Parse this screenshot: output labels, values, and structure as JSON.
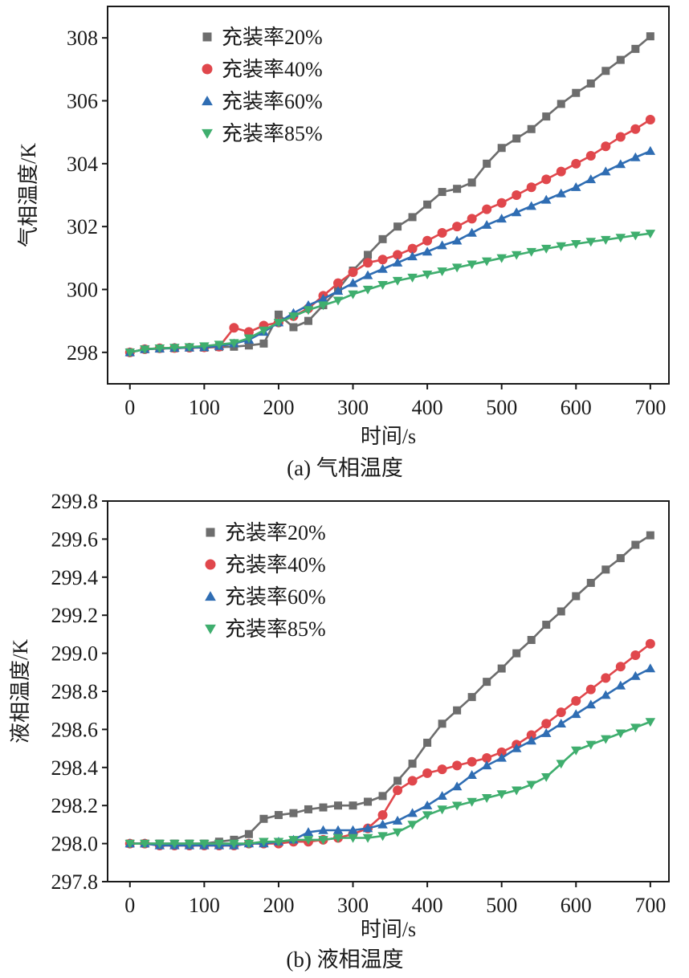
{
  "chart_data": [
    {
      "type": "line",
      "title": "",
      "caption": "(a) 气相温度",
      "xlabel": "时间/s",
      "ylabel": "气相温度/K",
      "xlim": [
        -30,
        725
      ],
      "ylim": [
        297,
        309
      ],
      "xticks": [
        0,
        100,
        200,
        300,
        400,
        500,
        600,
        700
      ],
      "yticks": [
        298,
        300,
        302,
        304,
        306,
        308
      ],
      "ytick_decimals": 0,
      "legend_position": "top-left",
      "series": [
        {
          "name": "充装率20%",
          "marker": "square",
          "color": "#6d6d6d",
          "x": [
            0,
            20,
            40,
            60,
            80,
            100,
            120,
            140,
            160,
            180,
            200,
            220,
            240,
            260,
            280,
            300,
            320,
            340,
            360,
            380,
            400,
            420,
            440,
            460,
            480,
            500,
            520,
            540,
            560,
            580,
            600,
            620,
            640,
            660,
            680,
            700
          ],
          "y": [
            298.0,
            298.1,
            298.12,
            298.13,
            298.15,
            298.15,
            298.17,
            298.18,
            298.22,
            298.28,
            299.2,
            298.8,
            299.0,
            299.5,
            300.0,
            300.6,
            301.1,
            301.6,
            302.0,
            302.3,
            302.7,
            303.1,
            303.2,
            303.4,
            304.0,
            304.5,
            304.8,
            305.1,
            305.5,
            305.9,
            306.25,
            306.55,
            306.95,
            307.3,
            307.65,
            308.05
          ]
        },
        {
          "name": "充装率40%",
          "marker": "circle",
          "color": "#e0474c",
          "x": [
            0,
            20,
            40,
            60,
            80,
            100,
            120,
            140,
            160,
            180,
            200,
            220,
            240,
            260,
            280,
            300,
            320,
            340,
            360,
            380,
            400,
            420,
            440,
            460,
            480,
            500,
            520,
            540,
            560,
            580,
            600,
            620,
            640,
            660,
            680,
            700
          ],
          "y": [
            298.0,
            298.1,
            298.13,
            298.14,
            298.15,
            298.16,
            298.18,
            298.78,
            298.65,
            298.85,
            298.95,
            299.15,
            299.4,
            299.8,
            300.2,
            300.55,
            300.85,
            300.95,
            301.1,
            301.3,
            301.55,
            301.8,
            302.0,
            302.25,
            302.55,
            302.75,
            303.0,
            303.25,
            303.5,
            303.75,
            304.0,
            304.25,
            304.55,
            304.85,
            305.1,
            305.4
          ]
        },
        {
          "name": "充装率60%",
          "marker": "triangle-up",
          "color": "#2f6db3",
          "x": [
            0,
            20,
            40,
            60,
            80,
            100,
            120,
            140,
            160,
            180,
            200,
            220,
            240,
            260,
            280,
            300,
            320,
            340,
            360,
            380,
            400,
            420,
            440,
            460,
            480,
            500,
            520,
            540,
            560,
            580,
            600,
            620,
            640,
            660,
            680,
            700
          ],
          "y": [
            298.0,
            298.1,
            298.12,
            298.14,
            298.15,
            298.16,
            298.2,
            298.28,
            298.4,
            298.65,
            298.95,
            299.25,
            299.5,
            299.7,
            299.95,
            300.2,
            300.45,
            300.65,
            300.85,
            301.05,
            301.2,
            301.4,
            301.55,
            301.8,
            302.05,
            302.25,
            302.45,
            302.65,
            302.85,
            303.05,
            303.25,
            303.5,
            303.75,
            303.98,
            304.2,
            304.4
          ]
        },
        {
          "name": "充装率85%",
          "marker": "triangle-down",
          "color": "#3fae6e",
          "x": [
            0,
            20,
            40,
            60,
            80,
            100,
            120,
            140,
            160,
            180,
            200,
            220,
            240,
            260,
            280,
            300,
            320,
            340,
            360,
            380,
            400,
            420,
            440,
            460,
            480,
            500,
            520,
            540,
            560,
            580,
            600,
            620,
            640,
            660,
            680,
            700
          ],
          "y": [
            298.0,
            298.1,
            298.13,
            298.15,
            298.17,
            298.2,
            298.25,
            298.3,
            298.45,
            298.7,
            298.95,
            299.15,
            299.35,
            299.5,
            299.65,
            299.85,
            300.0,
            300.15,
            300.28,
            300.38,
            300.48,
            300.58,
            300.7,
            300.8,
            300.9,
            301.0,
            301.1,
            301.2,
            301.3,
            301.38,
            301.45,
            301.52,
            301.58,
            301.65,
            301.72,
            301.78
          ]
        }
      ]
    },
    {
      "type": "line",
      "title": "",
      "caption": "(b) 液相温度",
      "xlabel": "时间/s",
      "ylabel": "液相温度/K",
      "xlim": [
        -30,
        725
      ],
      "ylim": [
        297.8,
        299.8
      ],
      "xticks": [
        0,
        100,
        200,
        300,
        400,
        500,
        600,
        700
      ],
      "yticks": [
        297.8,
        298.0,
        298.2,
        298.4,
        298.6,
        298.8,
        299.0,
        299.2,
        299.4,
        299.6,
        299.8
      ],
      "ytick_decimals": 1,
      "legend_position": "top-left",
      "series": [
        {
          "name": "充装率20%",
          "marker": "square",
          "color": "#6d6d6d",
          "x": [
            0,
            20,
            40,
            60,
            80,
            100,
            120,
            140,
            160,
            180,
            200,
            220,
            240,
            260,
            280,
            300,
            320,
            340,
            360,
            380,
            400,
            420,
            440,
            460,
            480,
            500,
            520,
            540,
            560,
            580,
            600,
            620,
            640,
            660,
            680,
            700
          ],
          "y": [
            298.0,
            298.0,
            298.0,
            298.0,
            298.0,
            298.0,
            298.01,
            298.02,
            298.05,
            298.13,
            298.15,
            298.16,
            298.18,
            298.19,
            298.2,
            298.2,
            298.22,
            298.25,
            298.33,
            298.42,
            298.53,
            298.63,
            298.7,
            298.77,
            298.85,
            298.92,
            299.0,
            299.07,
            299.15,
            299.22,
            299.3,
            299.37,
            299.44,
            299.5,
            299.57,
            299.62
          ]
        },
        {
          "name": "充装率40%",
          "marker": "circle",
          "color": "#e0474c",
          "x": [
            0,
            20,
            40,
            60,
            80,
            100,
            120,
            140,
            160,
            180,
            200,
            220,
            240,
            260,
            280,
            300,
            320,
            340,
            360,
            380,
            400,
            420,
            440,
            460,
            480,
            500,
            520,
            540,
            560,
            580,
            600,
            620,
            640,
            660,
            680,
            700
          ],
          "y": [
            298.0,
            298.0,
            297.99,
            297.99,
            297.99,
            297.99,
            297.99,
            297.99,
            298.0,
            298.0,
            298.0,
            298.01,
            298.01,
            298.02,
            298.03,
            298.05,
            298.08,
            298.15,
            298.28,
            298.33,
            298.37,
            298.39,
            298.41,
            298.43,
            298.45,
            298.48,
            298.52,
            298.57,
            298.63,
            298.69,
            298.75,
            298.81,
            298.87,
            298.93,
            298.99,
            299.05
          ]
        },
        {
          "name": "充装率60%",
          "marker": "triangle-up",
          "color": "#2f6db3",
          "x": [
            0,
            20,
            40,
            60,
            80,
            100,
            120,
            140,
            160,
            180,
            200,
            220,
            240,
            260,
            280,
            300,
            320,
            340,
            360,
            380,
            400,
            420,
            440,
            460,
            480,
            500,
            520,
            540,
            560,
            580,
            600,
            620,
            640,
            660,
            680,
            700
          ],
          "y": [
            298.0,
            298.0,
            297.99,
            297.99,
            297.99,
            297.99,
            297.99,
            297.99,
            298.0,
            298.0,
            298.01,
            298.02,
            298.06,
            298.07,
            298.07,
            298.07,
            298.08,
            298.1,
            298.12,
            298.16,
            298.2,
            298.25,
            298.3,
            298.36,
            298.41,
            298.45,
            298.5,
            298.54,
            298.58,
            298.63,
            298.68,
            298.73,
            298.78,
            298.83,
            298.88,
            298.92
          ]
        },
        {
          "name": "充装率85%",
          "marker": "triangle-down",
          "color": "#3fae6e",
          "x": [
            0,
            20,
            40,
            60,
            80,
            100,
            120,
            140,
            160,
            180,
            200,
            220,
            240,
            260,
            280,
            300,
            320,
            340,
            360,
            380,
            400,
            420,
            440,
            460,
            480,
            500,
            520,
            540,
            560,
            580,
            600,
            620,
            640,
            660,
            680,
            700
          ],
          "y": [
            298.0,
            298.0,
            298.0,
            298.0,
            298.0,
            298.0,
            298.0,
            298.0,
            298.0,
            298.01,
            298.01,
            298.02,
            298.02,
            298.02,
            298.03,
            298.03,
            298.03,
            298.04,
            298.06,
            298.1,
            298.15,
            298.18,
            298.2,
            298.22,
            298.24,
            298.26,
            298.28,
            298.31,
            298.35,
            298.42,
            298.49,
            298.52,
            298.55,
            298.58,
            298.61,
            298.64
          ]
        }
      ]
    }
  ]
}
